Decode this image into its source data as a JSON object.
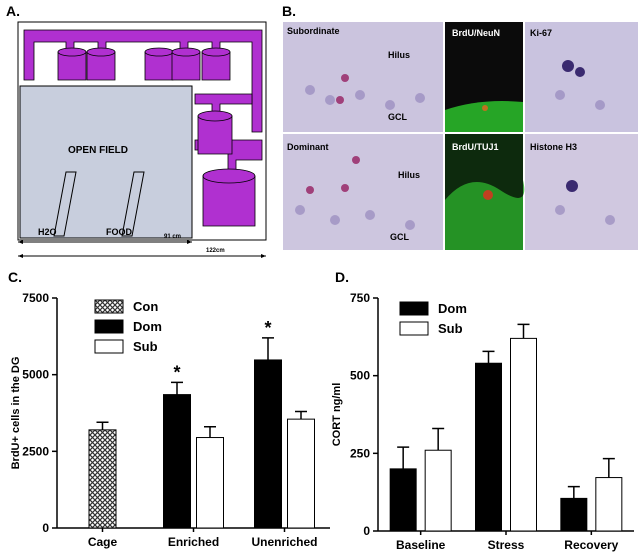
{
  "panels": {
    "a": {
      "label": "A.",
      "open_field": "OPEN FIELD",
      "water": "H2O",
      "food": "FOOD",
      "inner_width": "91 cm",
      "outer_width": "122cm"
    },
    "b": {
      "label": "B.",
      "images": [
        {
          "label": "Subordinate",
          "tags": [
            "Hilus",
            "GCL"
          ]
        },
        {
          "label": "BrdU/NeuN",
          "tags": []
        },
        {
          "label": "Ki-67",
          "tags": []
        },
        {
          "label": "Dominant",
          "tags": [
            "Hilus",
            "GCL"
          ]
        },
        {
          "label": "BrdU/TUJ1",
          "tags": []
        },
        {
          "label": "Histone H3",
          "tags": []
        }
      ]
    }
  },
  "chart_data": [
    {
      "type": "bar",
      "panel_label": "C.",
      "ylabel": "BrdU+ cells in the DG",
      "categories": [
        "Cage",
        "Enriched",
        "Unenriched"
      ],
      "series": [
        {
          "name": "Con",
          "color": "#555555",
          "hatch": true,
          "values": [
            3200,
            null,
            null
          ],
          "errors": [
            250,
            null,
            null
          ]
        },
        {
          "name": "Dom",
          "color": "#000000",
          "values": [
            null,
            4350,
            5480
          ],
          "errors": [
            null,
            400,
            720
          ]
        },
        {
          "name": "Sub",
          "color": "#ffffff",
          "values": [
            null,
            2950,
            3550
          ],
          "errors": [
            null,
            350,
            250
          ]
        }
      ],
      "annotations": [
        "*",
        "*"
      ],
      "ylim": [
        0,
        7500
      ],
      "yticks": [
        0,
        2500,
        5000,
        7500
      ]
    },
    {
      "type": "bar",
      "panel_label": "D.",
      "ylabel": "CORT ng/ml",
      "categories": [
        "Baseline",
        "Stress",
        "Recovery"
      ],
      "series": [
        {
          "name": "Dom",
          "color": "#000000",
          "values": [
            200,
            540,
            105
          ],
          "errors": [
            70,
            38,
            38
          ]
        },
        {
          "name": "Sub",
          "color": "#ffffff",
          "values": [
            260,
            620,
            172
          ],
          "errors": [
            70,
            45,
            61
          ]
        }
      ],
      "ylim": [
        0,
        750
      ],
      "yticks": [
        0,
        250,
        500,
        750
      ]
    }
  ]
}
